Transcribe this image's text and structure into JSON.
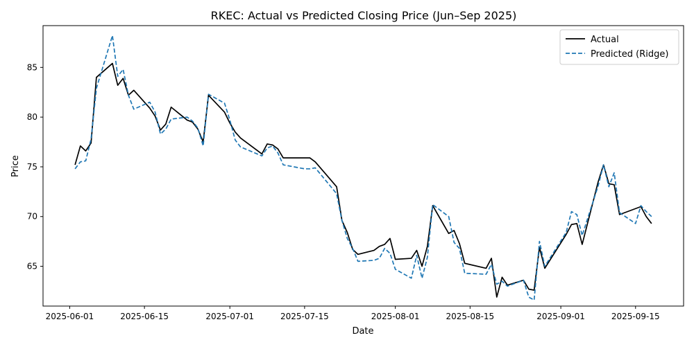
{
  "chart_data": {
    "type": "line",
    "title": "RKEC: Actual vs Predicted Closing Price (Jun–Sep 2025)",
    "xlabel": "Date",
    "ylabel": "Price",
    "xlim": [
      "2025-05-27",
      "2025-09-24"
    ],
    "ylim": [
      61.0,
      89.2
    ],
    "x_ticks": [
      "2025-06-01",
      "2025-06-15",
      "2025-07-01",
      "2025-07-15",
      "2025-08-01",
      "2025-08-15",
      "2025-09-01",
      "2025-09-15"
    ],
    "y_ticks": [
      65,
      70,
      75,
      80,
      85
    ],
    "grid": false,
    "legend_position": "top-right",
    "series": [
      {
        "name": "Actual",
        "color": "#000000",
        "style": "solid",
        "x": [
          "2025-06-02",
          "2025-06-03",
          "2025-06-04",
          "2025-06-05",
          "2025-06-06",
          "2025-06-09",
          "2025-06-10",
          "2025-06-11",
          "2025-06-12",
          "2025-06-13",
          "2025-06-16",
          "2025-06-17",
          "2025-06-18",
          "2025-06-19",
          "2025-06-20",
          "2025-06-23",
          "2025-06-24",
          "2025-06-25",
          "2025-06-26",
          "2025-06-27",
          "2025-06-30",
          "2025-07-01",
          "2025-07-02",
          "2025-07-03",
          "2025-07-07",
          "2025-07-08",
          "2025-07-09",
          "2025-07-10",
          "2025-07-11",
          "2025-07-14",
          "2025-07-15",
          "2025-07-16",
          "2025-07-17",
          "2025-07-21",
          "2025-07-22",
          "2025-07-23",
          "2025-07-24",
          "2025-07-25",
          "2025-07-28",
          "2025-07-29",
          "2025-07-30",
          "2025-07-31",
          "2025-08-01",
          "2025-08-04",
          "2025-08-05",
          "2025-08-06",
          "2025-08-07",
          "2025-08-08",
          "2025-08-11",
          "2025-08-12",
          "2025-08-13",
          "2025-08-14",
          "2025-08-18",
          "2025-08-19",
          "2025-08-20",
          "2025-08-21",
          "2025-08-22",
          "2025-08-25",
          "2025-08-26",
          "2025-08-27",
          "2025-08-28",
          "2025-08-29",
          "2025-09-02",
          "2025-09-03",
          "2025-09-04",
          "2025-09-05",
          "2025-09-08",
          "2025-09-09",
          "2025-09-10",
          "2025-09-11",
          "2025-09-12",
          "2025-09-15",
          "2025-09-16",
          "2025-09-17",
          "2025-09-18"
        ],
        "y": [
          75.2,
          77.1,
          76.6,
          77.4,
          84.0,
          85.4,
          83.2,
          83.9,
          82.2,
          82.7,
          80.9,
          80.1,
          78.7,
          79.3,
          81.0,
          79.7,
          79.5,
          78.8,
          77.5,
          82.2,
          80.5,
          79.4,
          78.5,
          77.9,
          76.3,
          77.3,
          77.2,
          76.8,
          75.9,
          75.9,
          75.9,
          75.9,
          75.5,
          73.0,
          69.6,
          68.4,
          66.7,
          66.2,
          66.6,
          67.0,
          67.2,
          67.8,
          65.7,
          65.8,
          66.6,
          65.0,
          67.0,
          71.1,
          68.3,
          68.6,
          67.3,
          65.3,
          64.8,
          65.8,
          61.9,
          63.9,
          63.1,
          63.6,
          62.7,
          62.6,
          66.9,
          64.8,
          68.2,
          69.2,
          69.3,
          67.2,
          73.5,
          75.2,
          73.3,
          73.2,
          70.2,
          70.8,
          71.0,
          70.0,
          69.3
        ]
      },
      {
        "name": "Predicted (Ridge)",
        "color": "#1f77b4",
        "style": "dashed",
        "x": [
          "2025-06-02",
          "2025-06-03",
          "2025-06-04",
          "2025-06-05",
          "2025-06-06",
          "2025-06-09",
          "2025-06-10",
          "2025-06-11",
          "2025-06-12",
          "2025-06-13",
          "2025-06-16",
          "2025-06-17",
          "2025-06-18",
          "2025-06-19",
          "2025-06-20",
          "2025-06-23",
          "2025-06-24",
          "2025-06-25",
          "2025-06-26",
          "2025-06-27",
          "2025-06-30",
          "2025-07-01",
          "2025-07-02",
          "2025-07-03",
          "2025-07-07",
          "2025-07-08",
          "2025-07-09",
          "2025-07-10",
          "2025-07-11",
          "2025-07-14",
          "2025-07-15",
          "2025-07-16",
          "2025-07-17",
          "2025-07-21",
          "2025-07-22",
          "2025-07-23",
          "2025-07-24",
          "2025-07-25",
          "2025-07-28",
          "2025-07-29",
          "2025-07-30",
          "2025-07-31",
          "2025-08-01",
          "2025-08-04",
          "2025-08-05",
          "2025-08-06",
          "2025-08-07",
          "2025-08-08",
          "2025-08-11",
          "2025-08-12",
          "2025-08-13",
          "2025-08-14",
          "2025-08-18",
          "2025-08-19",
          "2025-08-20",
          "2025-08-21",
          "2025-08-22",
          "2025-08-25",
          "2025-08-26",
          "2025-08-27",
          "2025-08-28",
          "2025-08-29",
          "2025-09-02",
          "2025-09-03",
          "2025-09-04",
          "2025-09-05",
          "2025-09-08",
          "2025-09-09",
          "2025-09-10",
          "2025-09-11",
          "2025-09-12",
          "2025-09-15",
          "2025-09-16",
          "2025-09-17",
          "2025-09-18"
        ],
        "y": [
          74.8,
          75.5,
          75.6,
          77.8,
          82.9,
          88.2,
          84.1,
          84.8,
          82.2,
          80.8,
          81.5,
          80.5,
          78.3,
          78.8,
          79.8,
          80.0,
          79.6,
          78.9,
          77.1,
          82.3,
          81.4,
          79.7,
          77.7,
          77.0,
          76.1,
          76.9,
          77.1,
          76.4,
          75.2,
          74.9,
          74.8,
          74.8,
          74.9,
          72.3,
          69.6,
          67.8,
          66.8,
          65.5,
          65.6,
          65.8,
          66.8,
          66.3,
          64.7,
          63.8,
          66.1,
          63.8,
          65.9,
          71.2,
          70.0,
          67.4,
          66.8,
          64.3,
          64.2,
          65.2,
          63.2,
          63.5,
          63.0,
          63.6,
          61.9,
          61.6,
          67.5,
          65.0,
          68.4,
          70.5,
          70.2,
          68.1,
          73.1,
          75.2,
          73.0,
          74.4,
          70.4,
          69.3,
          71.1,
          70.5,
          70.0
        ]
      }
    ]
  }
}
